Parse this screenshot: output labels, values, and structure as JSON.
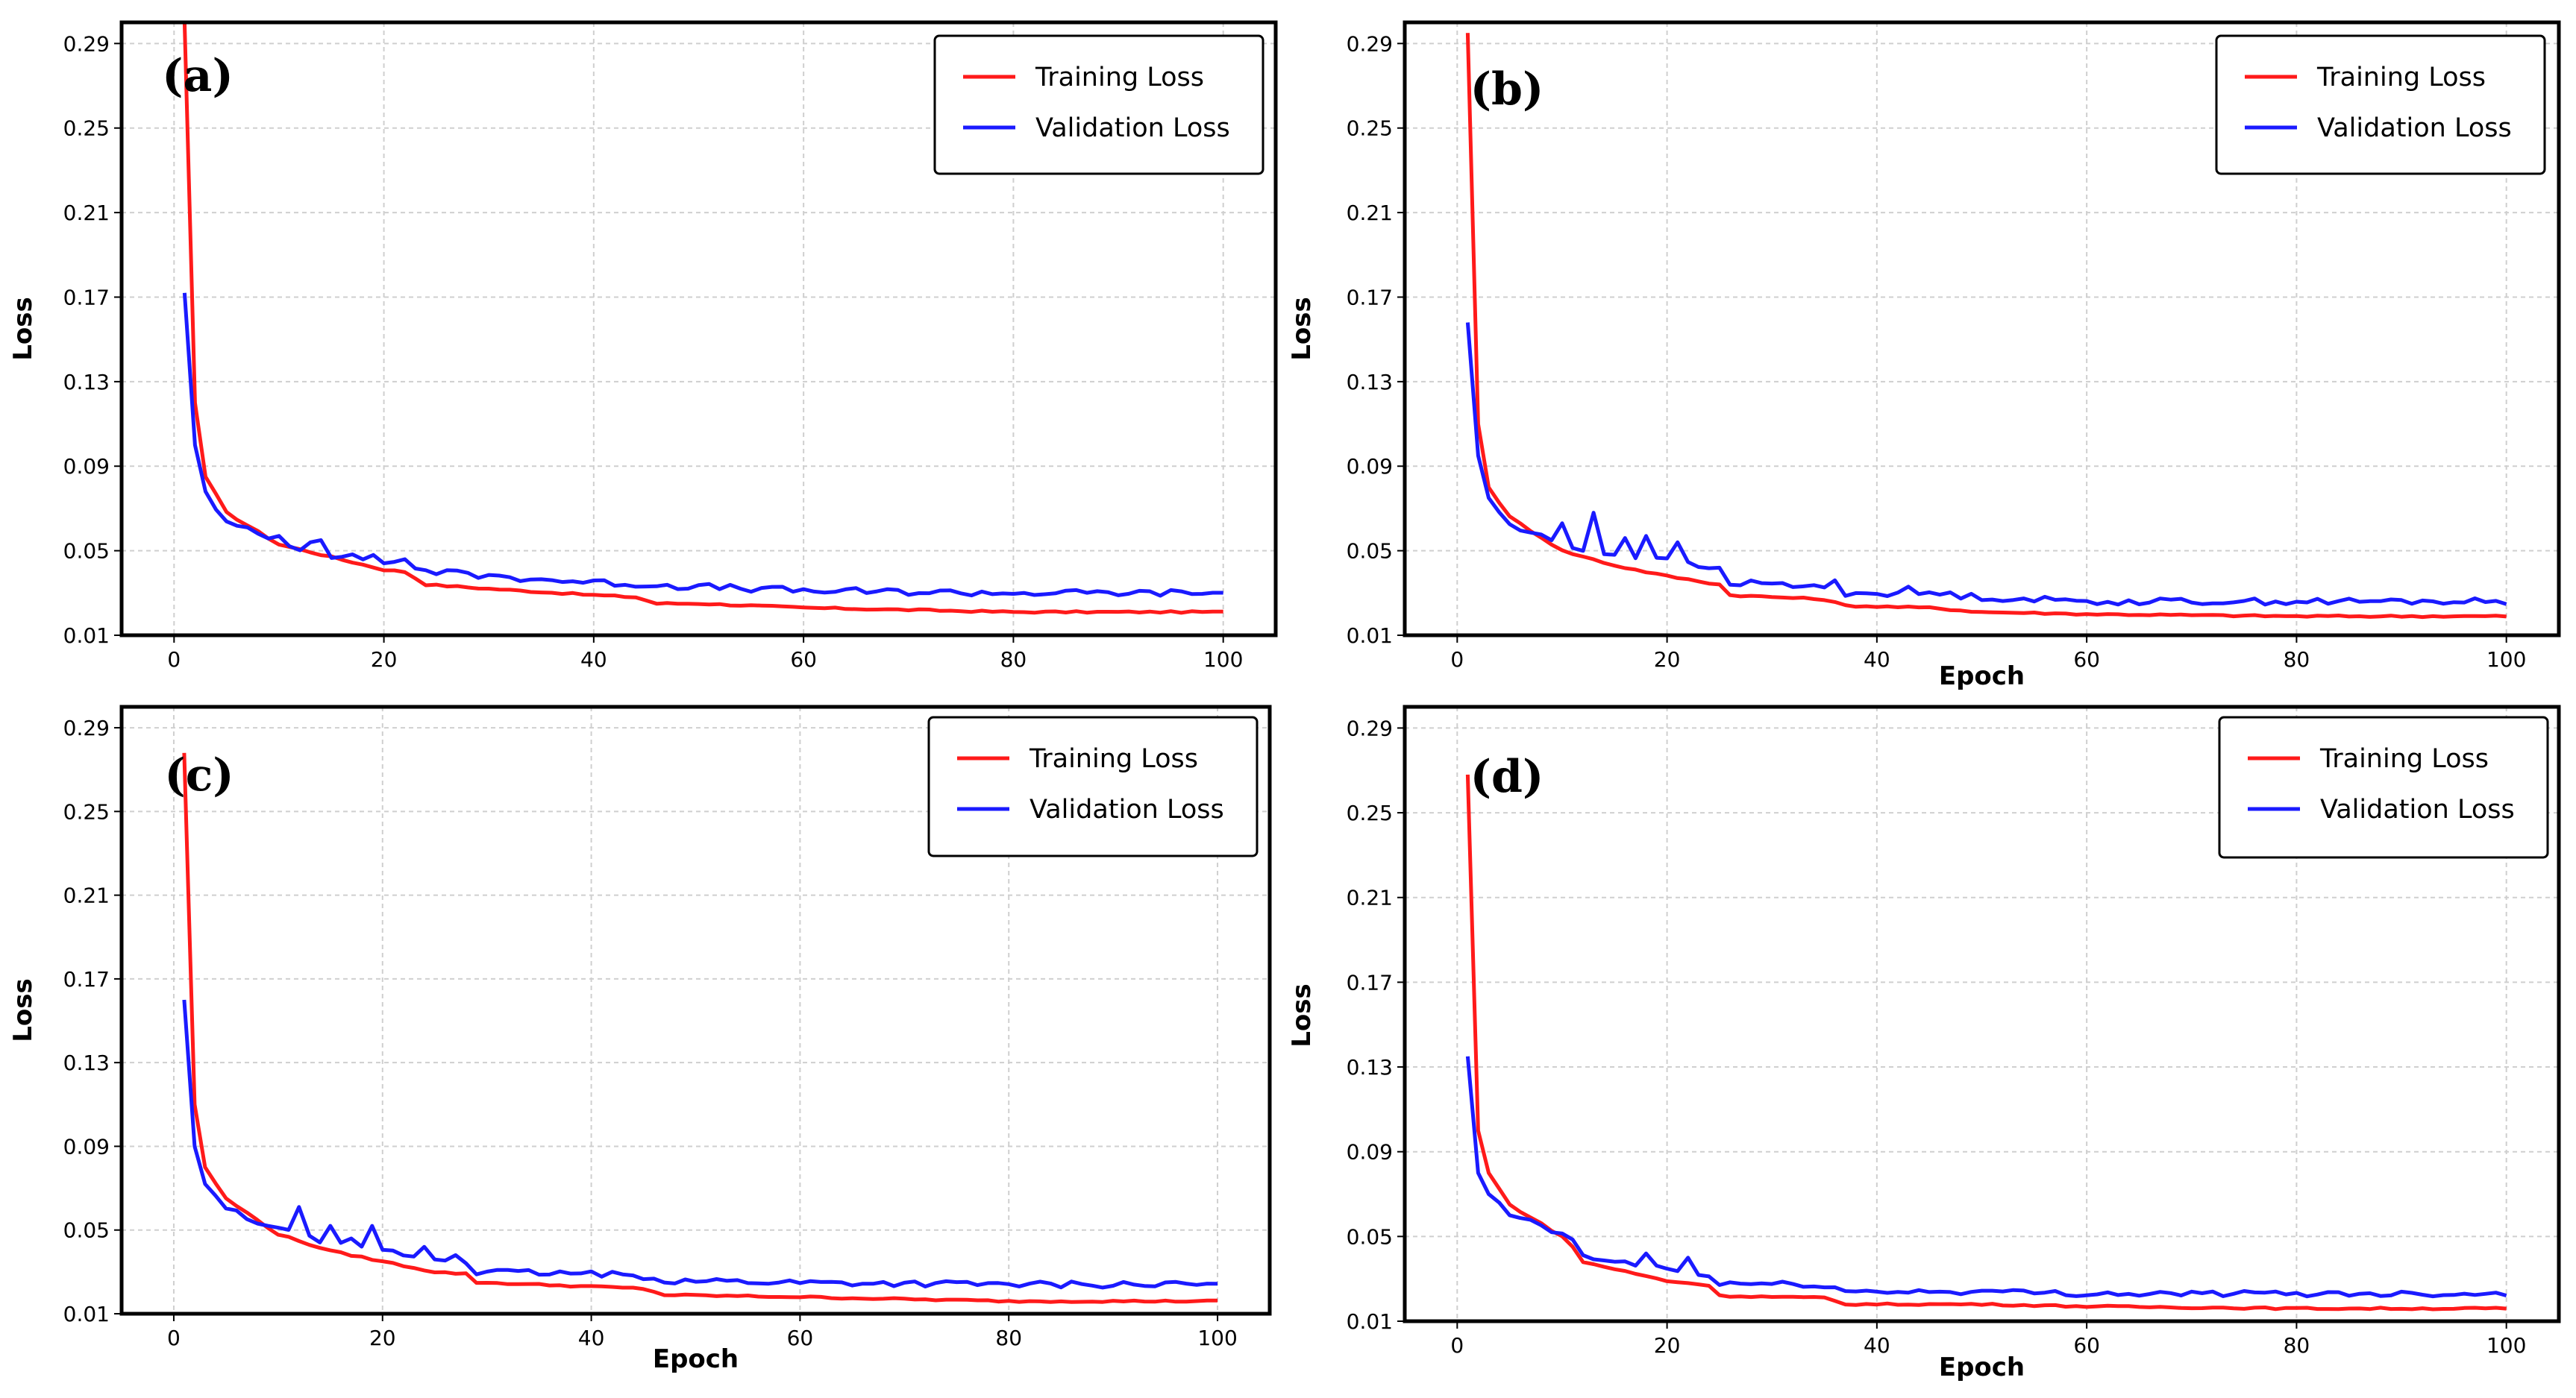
{
  "chart_data": [
    {
      "panel": "(a)",
      "type": "line",
      "title": "",
      "xlabel": "",
      "ylabel": "Loss",
      "xlim": [
        -5,
        105
      ],
      "ylim": [
        0.01,
        0.3
      ],
      "xticks": [
        0,
        20,
        40,
        60,
        80,
        100
      ],
      "yticks": [
        0.01,
        0.05,
        0.09,
        0.13,
        0.17,
        0.21,
        0.25,
        0.29
      ],
      "grid": true,
      "legend": "top-right",
      "colors": {
        "train": "#ff1a1a",
        "val": "#1a1aff"
      },
      "series": [
        {
          "name": "Training Loss",
          "anchors": [
            [
              1,
              0.3
            ],
            [
              2,
              0.12
            ],
            [
              3,
              0.085
            ],
            [
              5,
              0.068
            ],
            [
              10,
              0.053
            ],
            [
              15,
              0.047
            ],
            [
              20,
              0.041
            ],
            [
              22,
              0.04
            ],
            [
              24,
              0.034
            ],
            [
              30,
              0.032
            ],
            [
              40,
              0.029
            ],
            [
              44,
              0.028
            ],
            [
              46,
              0.025
            ],
            [
              50,
              0.025
            ],
            [
              60,
              0.023
            ],
            [
              80,
              0.021
            ],
            [
              100,
              0.021
            ]
          ],
          "noise": 0.0004
        },
        {
          "name": "Validation Loss",
          "anchors": [
            [
              1,
              0.172
            ],
            [
              2,
              0.1
            ],
            [
              3,
              0.078
            ],
            [
              5,
              0.063
            ],
            [
              8,
              0.058
            ],
            [
              10,
              0.053
            ],
            [
              15,
              0.048
            ],
            [
              20,
              0.045
            ],
            [
              25,
              0.04
            ],
            [
              30,
              0.038
            ],
            [
              40,
              0.035
            ],
            [
              45,
              0.034
            ],
            [
              50,
              0.033
            ],
            [
              60,
              0.031
            ],
            [
              80,
              0.03
            ],
            [
              100,
              0.03
            ]
          ],
          "noise": 0.0016,
          "spikes": [
            [
              7,
              0.061
            ],
            [
              10,
              0.057
            ],
            [
              13,
              0.054
            ],
            [
              14,
              0.055
            ],
            [
              19,
              0.048
            ],
            [
              22,
              0.046
            ]
          ]
        }
      ]
    },
    {
      "panel": "(b)",
      "type": "line",
      "title": "",
      "xlabel": "Epoch",
      "ylabel": "Loss",
      "xlim": [
        -5,
        105
      ],
      "ylim": [
        0.01,
        0.3
      ],
      "xticks": [
        0,
        20,
        40,
        60,
        80,
        100
      ],
      "yticks": [
        0.01,
        0.05,
        0.09,
        0.13,
        0.17,
        0.21,
        0.25,
        0.29
      ],
      "grid": true,
      "legend": "top-right",
      "colors": {
        "train": "#ff1a1a",
        "val": "#1a1aff"
      },
      "series": [
        {
          "name": "Training Loss",
          "anchors": [
            [
              1,
              0.295
            ],
            [
              2,
              0.11
            ],
            [
              3,
              0.08
            ],
            [
              5,
              0.066
            ],
            [
              10,
              0.05
            ],
            [
              15,
              0.043
            ],
            [
              20,
              0.038
            ],
            [
              25,
              0.034
            ],
            [
              26,
              0.029
            ],
            [
              35,
              0.027
            ],
            [
              37,
              0.024
            ],
            [
              45,
              0.023
            ],
            [
              50,
              0.021
            ],
            [
              60,
              0.02
            ],
            [
              80,
              0.019
            ],
            [
              100,
              0.019
            ]
          ],
          "noise": 0.0004
        },
        {
          "name": "Validation Loss",
          "anchors": [
            [
              1,
              0.158
            ],
            [
              2,
              0.095
            ],
            [
              3,
              0.075
            ],
            [
              5,
              0.062
            ],
            [
              10,
              0.053
            ],
            [
              15,
              0.048
            ],
            [
              20,
              0.045
            ],
            [
              25,
              0.041
            ],
            [
              26,
              0.035
            ],
            [
              35,
              0.033
            ],
            [
              37,
              0.03
            ],
            [
              45,
              0.03
            ],
            [
              50,
              0.028
            ],
            [
              60,
              0.026
            ],
            [
              80,
              0.026
            ],
            [
              100,
              0.026
            ]
          ],
          "noise": 0.0015,
          "spikes": [
            [
              10,
              0.063
            ],
            [
              13,
              0.068
            ],
            [
              16,
              0.056
            ],
            [
              18,
              0.057
            ],
            [
              21,
              0.054
            ],
            [
              36,
              0.036
            ],
            [
              43,
              0.033
            ]
          ]
        }
      ]
    },
    {
      "panel": "(c)",
      "type": "line",
      "title": "",
      "xlabel": "Epoch",
      "ylabel": "Loss",
      "xlim": [
        -5,
        105
      ],
      "ylim": [
        0.01,
        0.3
      ],
      "xticks": [
        0,
        20,
        40,
        60,
        80,
        100
      ],
      "yticks": [
        0.01,
        0.05,
        0.09,
        0.13,
        0.17,
        0.21,
        0.25,
        0.29
      ],
      "grid": true,
      "legend": "top-right",
      "colors": {
        "train": "#ff1a1a",
        "val": "#1a1aff"
      },
      "series": [
        {
          "name": "Training Loss",
          "anchors": [
            [
              1,
              0.278
            ],
            [
              2,
              0.11
            ],
            [
              3,
              0.08
            ],
            [
              5,
              0.065
            ],
            [
              10,
              0.048
            ],
            [
              15,
              0.04
            ],
            [
              20,
              0.035
            ],
            [
              25,
              0.03
            ],
            [
              28,
              0.029
            ],
            [
              29,
              0.025
            ],
            [
              40,
              0.023
            ],
            [
              45,
              0.022
            ],
            [
              47,
              0.019
            ],
            [
              60,
              0.018
            ],
            [
              80,
              0.016
            ],
            [
              100,
              0.016
            ]
          ],
          "noise": 0.0004
        },
        {
          "name": "Validation Loss",
          "anchors": [
            [
              1,
              0.16
            ],
            [
              2,
              0.09
            ],
            [
              3,
              0.072
            ],
            [
              5,
              0.06
            ],
            [
              10,
              0.05
            ],
            [
              15,
              0.043
            ],
            [
              20,
              0.04
            ],
            [
              25,
              0.036
            ],
            [
              28,
              0.035
            ],
            [
              29,
              0.03
            ],
            [
              40,
              0.029
            ],
            [
              45,
              0.028
            ],
            [
              47,
              0.026
            ],
            [
              60,
              0.025
            ],
            [
              80,
              0.024
            ],
            [
              100,
              0.024
            ]
          ],
          "noise": 0.0015,
          "spikes": [
            [
              12,
              0.061
            ],
            [
              15,
              0.052
            ],
            [
              17,
              0.046
            ],
            [
              19,
              0.052
            ],
            [
              24,
              0.042
            ],
            [
              27,
              0.038
            ]
          ]
        }
      ]
    },
    {
      "panel": "(d)",
      "type": "line",
      "title": "",
      "xlabel": "Epoch",
      "ylabel": "Loss",
      "xlim": [
        -5,
        105
      ],
      "ylim": [
        0.01,
        0.3
      ],
      "xticks": [
        0,
        20,
        40,
        60,
        80,
        100
      ],
      "yticks": [
        0.01,
        0.05,
        0.09,
        0.13,
        0.17,
        0.21,
        0.25,
        0.29
      ],
      "grid": true,
      "legend": "top-right",
      "colors": {
        "train": "#ff1a1a",
        "val": "#1a1aff"
      },
      "series": [
        {
          "name": "Training Loss",
          "anchors": [
            [
              1,
              0.268
            ],
            [
              2,
              0.1
            ],
            [
              3,
              0.08
            ],
            [
              5,
              0.065
            ],
            [
              10,
              0.05
            ],
            [
              11,
              0.045
            ],
            [
              12,
              0.038
            ],
            [
              20,
              0.029
            ],
            [
              24,
              0.027
            ],
            [
              25,
              0.022
            ],
            [
              35,
              0.021
            ],
            [
              37,
              0.018
            ],
            [
              50,
              0.018
            ],
            [
              60,
              0.017
            ],
            [
              80,
              0.016
            ],
            [
              100,
              0.016
            ]
          ],
          "noise": 0.0004
        },
        {
          "name": "Validation Loss",
          "anchors": [
            [
              1,
              0.135
            ],
            [
              2,
              0.08
            ],
            [
              3,
              0.07
            ],
            [
              5,
              0.06
            ],
            [
              10,
              0.052
            ],
            [
              11,
              0.048
            ],
            [
              12,
              0.04
            ],
            [
              20,
              0.035
            ],
            [
              24,
              0.031
            ],
            [
              25,
              0.028
            ],
            [
              35,
              0.027
            ],
            [
              37,
              0.024
            ],
            [
              50,
              0.024
            ],
            [
              60,
              0.023
            ],
            [
              80,
              0.023
            ],
            [
              100,
              0.023
            ]
          ],
          "noise": 0.0013,
          "spikes": [
            [
              9,
              0.052
            ],
            [
              18,
              0.042
            ],
            [
              22,
              0.04
            ]
          ]
        }
      ]
    }
  ]
}
